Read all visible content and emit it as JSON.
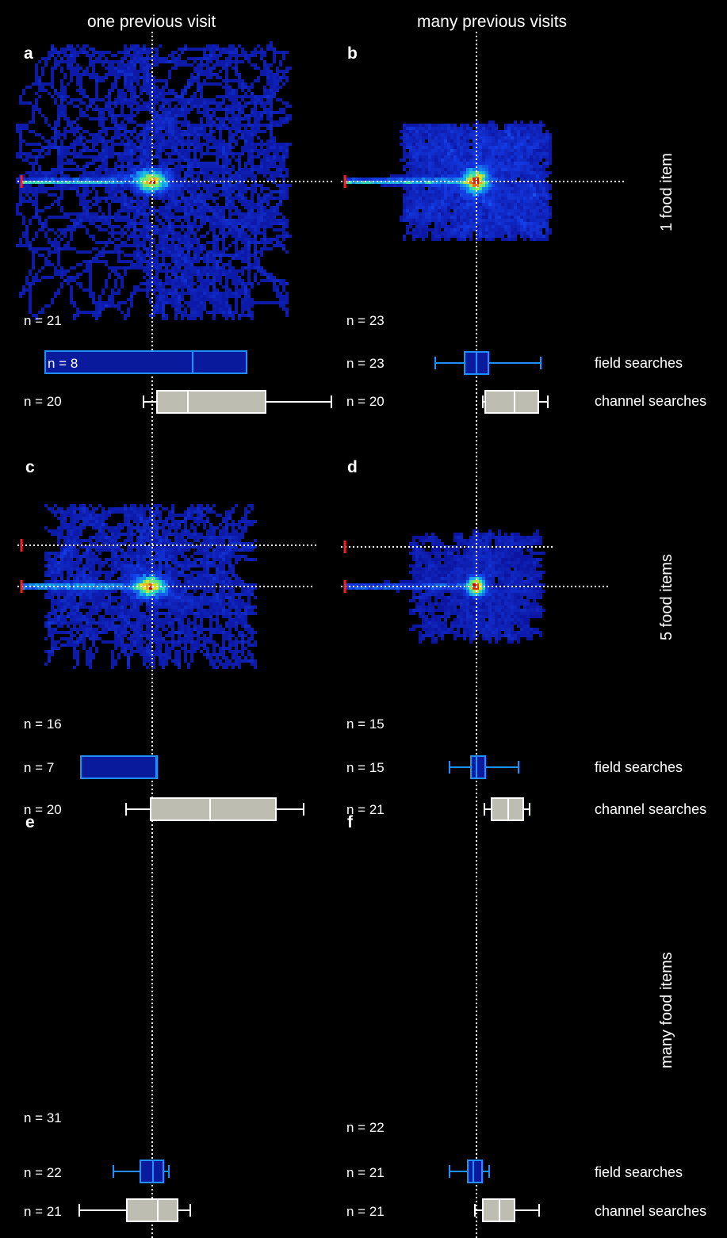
{
  "columns": [
    "one previous visit",
    "many previous visits"
  ],
  "rows": [
    "1 food item",
    "5 food items",
    "many food items"
  ],
  "box_labels": {
    "field": "field searches",
    "channel": "channel searches"
  },
  "colors": {
    "background": "#000000",
    "field_fill": "#0a1a9c",
    "field_stroke": "#1e90ff",
    "channel_fill": "#bdbdb2",
    "channel_stroke": "#ffffff",
    "start_marker": "#ff1e1e",
    "guide": "#ffffff"
  },
  "chart_data": [
    {
      "panel": "a",
      "type": "heatmap",
      "column": "one previous visit",
      "row": "1 food item",
      "track_n": "n = 21",
      "field": {
        "n": "n = 8",
        "q1": 57,
        "median": 243,
        "q3": 311
      },
      "channel": {
        "n": "n = 20",
        "whisker_low": 181,
        "q1": 198,
        "median": 237,
        "q3": 335,
        "whisker_high": 418
      }
    },
    {
      "panel": "b",
      "type": "heatmap",
      "column": "many previous visits",
      "row": "1 food item",
      "track_n": "n = 23",
      "field": {
        "n": "n = 23",
        "whisker_low": 549,
        "q1": 586,
        "median": 601,
        "q3": 616,
        "whisker_high": 682
      },
      "channel": {
        "n": "n = 20",
        "whisker_low": 609,
        "q1": 612,
        "median": 649,
        "q3": 679,
        "whisker_high": 691
      }
    },
    {
      "panel": "c",
      "type": "heatmap",
      "column": "one previous visit",
      "row": "5 food items",
      "track_n": "n = 16",
      "field": {
        "n": "n = 7",
        "q1": 102,
        "median": 197,
        "q3": 198
      },
      "channel": {
        "n": "n = 20",
        "whisker_low": 159,
        "q1": 190,
        "median": 265,
        "q3": 348,
        "whisker_high": 383
      }
    },
    {
      "panel": "d",
      "type": "heatmap",
      "column": "many previous visits",
      "row": "5 food items",
      "track_n": "n = 15",
      "field": {
        "n": "n = 15",
        "whisker_low": 567,
        "q1": 594,
        "median": 601,
        "q3": 612,
        "whisker_high": 654
      },
      "channel": {
        "n": "n = 21",
        "whisker_low": 611,
        "q1": 620,
        "median": 641,
        "q3": 660,
        "whisker_high": 668
      }
    },
    {
      "panel": "e",
      "type": "heatmap",
      "column": "one previous visit",
      "row": "many food items",
      "track_n": "n = 31",
      "field": {
        "n": "n = 22",
        "whisker_low": 143,
        "q1": 177,
        "median": 193,
        "q3": 206,
        "whisker_high": 213
      },
      "channel": {
        "n": "n = 21",
        "whisker_low": 100,
        "q1": 160,
        "median": 199,
        "q3": 224,
        "whisker_high": 240
      }
    },
    {
      "panel": "f",
      "type": "heatmap",
      "column": "many previous visits",
      "row": "many food items",
      "track_n": "n = 22",
      "field": {
        "n": "n = 21",
        "whisker_low": 567,
        "q1": 590,
        "median": 597,
        "q3": 608,
        "whisker_high": 617
      },
      "channel": {
        "n": "n = 21",
        "whisker_low": 599,
        "q1": 609,
        "median": 630,
        "q3": 649,
        "whisker_high": 680
      }
    }
  ]
}
